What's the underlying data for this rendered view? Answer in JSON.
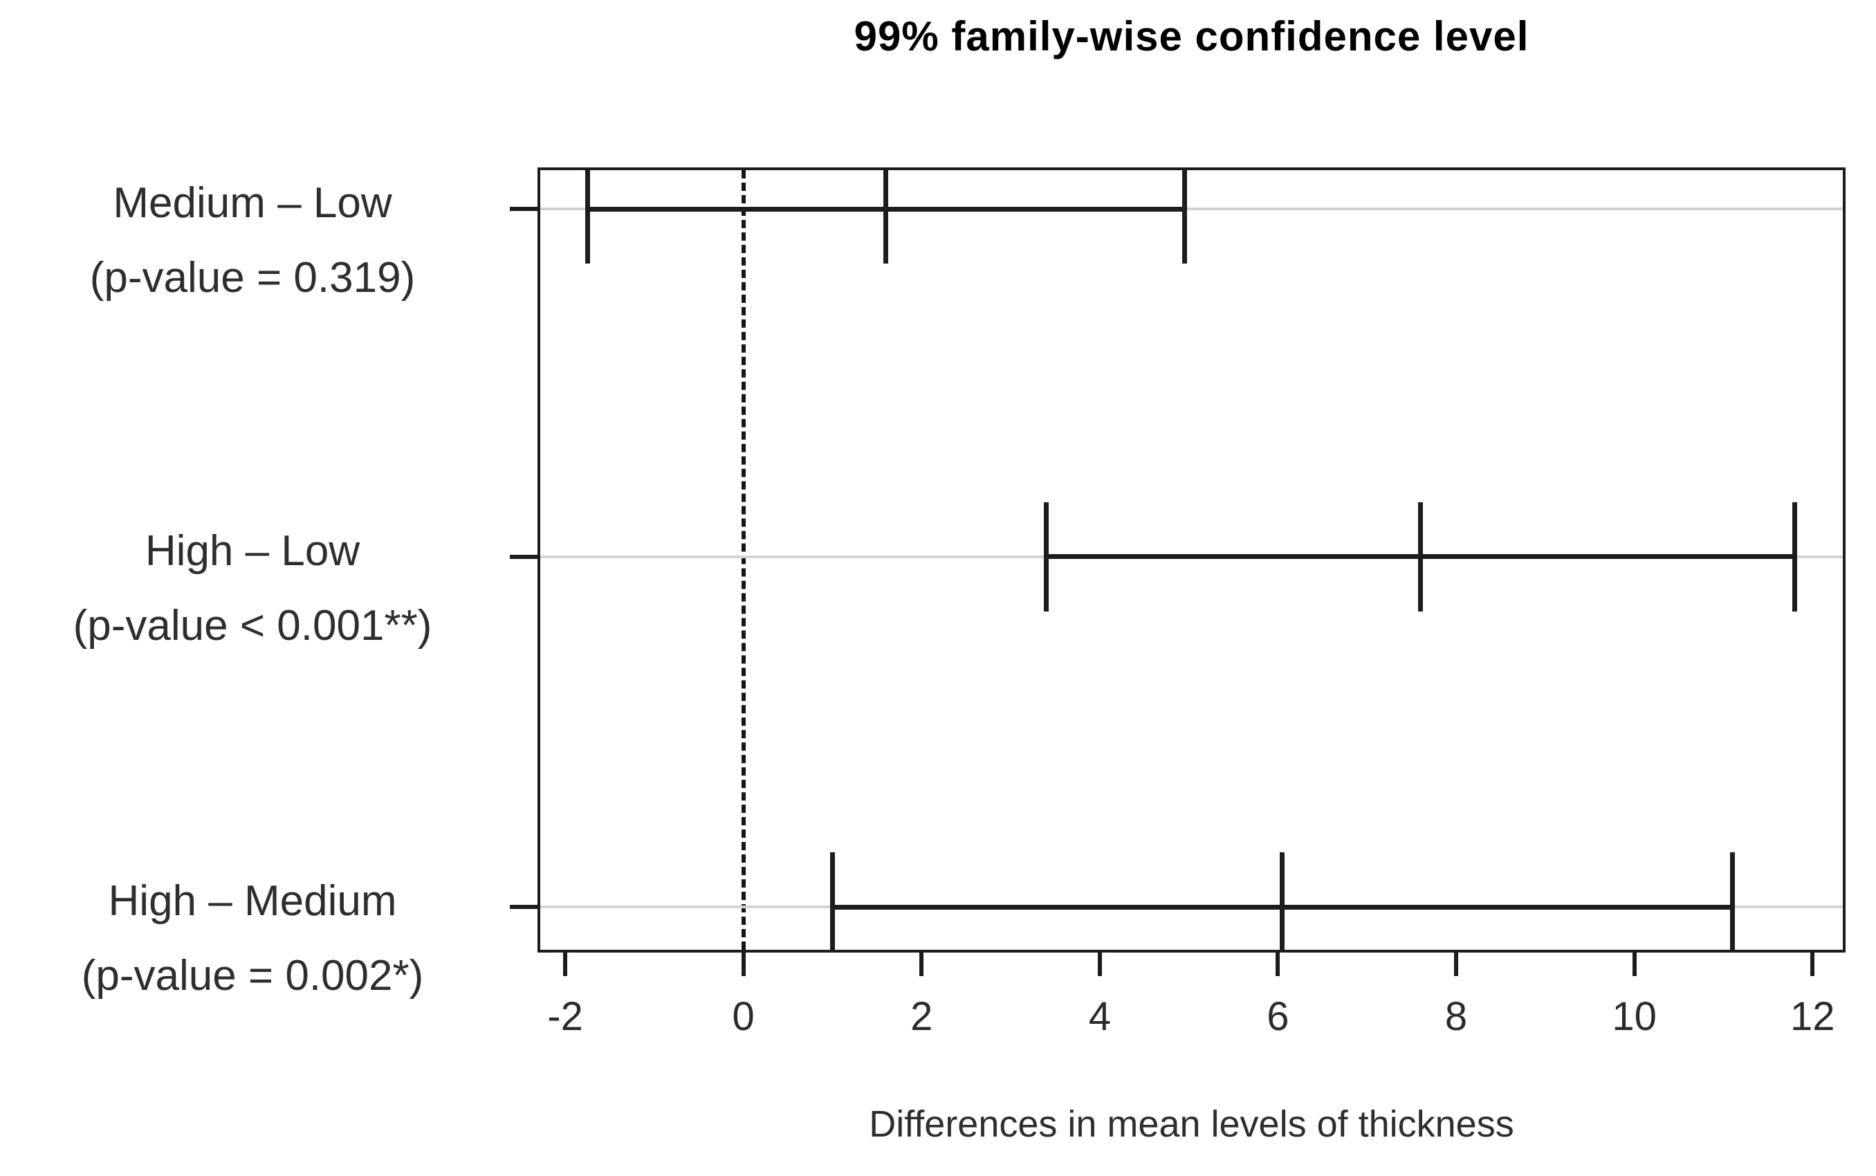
{
  "title": "99% family-wise confidence level",
  "x_axis_label": "Differences in mean levels of thickness",
  "colors": {
    "background": "#ffffff",
    "frame_and_intervals": "#1c1c1c",
    "row_guide_line": "#d3d3d3",
    "zero_reference_line": "#161616",
    "text": "#2e2e2e",
    "title_text": "#000000"
  },
  "chart_data": {
    "type": "errorbar",
    "subtype": "tukey-hsd-confidence-intervals",
    "orientation": "horizontal",
    "title": "99% family-wise confidence level",
    "xlabel": "Differences in mean levels of thickness",
    "xlim": [
      -2.28,
      12.34
    ],
    "x_ticks": [
      -2,
      0,
      2,
      4,
      6,
      8,
      10,
      12
    ],
    "zero_reference_line_x": 0,
    "grid": "horizontal-row-guide-lines",
    "legend": "none",
    "row_fractions": [
      0.05,
      0.496,
      0.945
    ],
    "comparisons": [
      {
        "label": "Medium – Low",
        "p_label": "(p-value = 0.319)",
        "lower": -1.75,
        "center": 1.6,
        "upper": 4.95
      },
      {
        "label": "High – Low",
        "p_label": "(p-value < 0.001**)",
        "lower": 3.4,
        "center": 7.6,
        "upper": 11.8
      },
      {
        "label": "High – Medium",
        "p_label": "(p-value = 0.002*)",
        "lower": 1.0,
        "center": 6.05,
        "upper": 11.1
      }
    ]
  }
}
